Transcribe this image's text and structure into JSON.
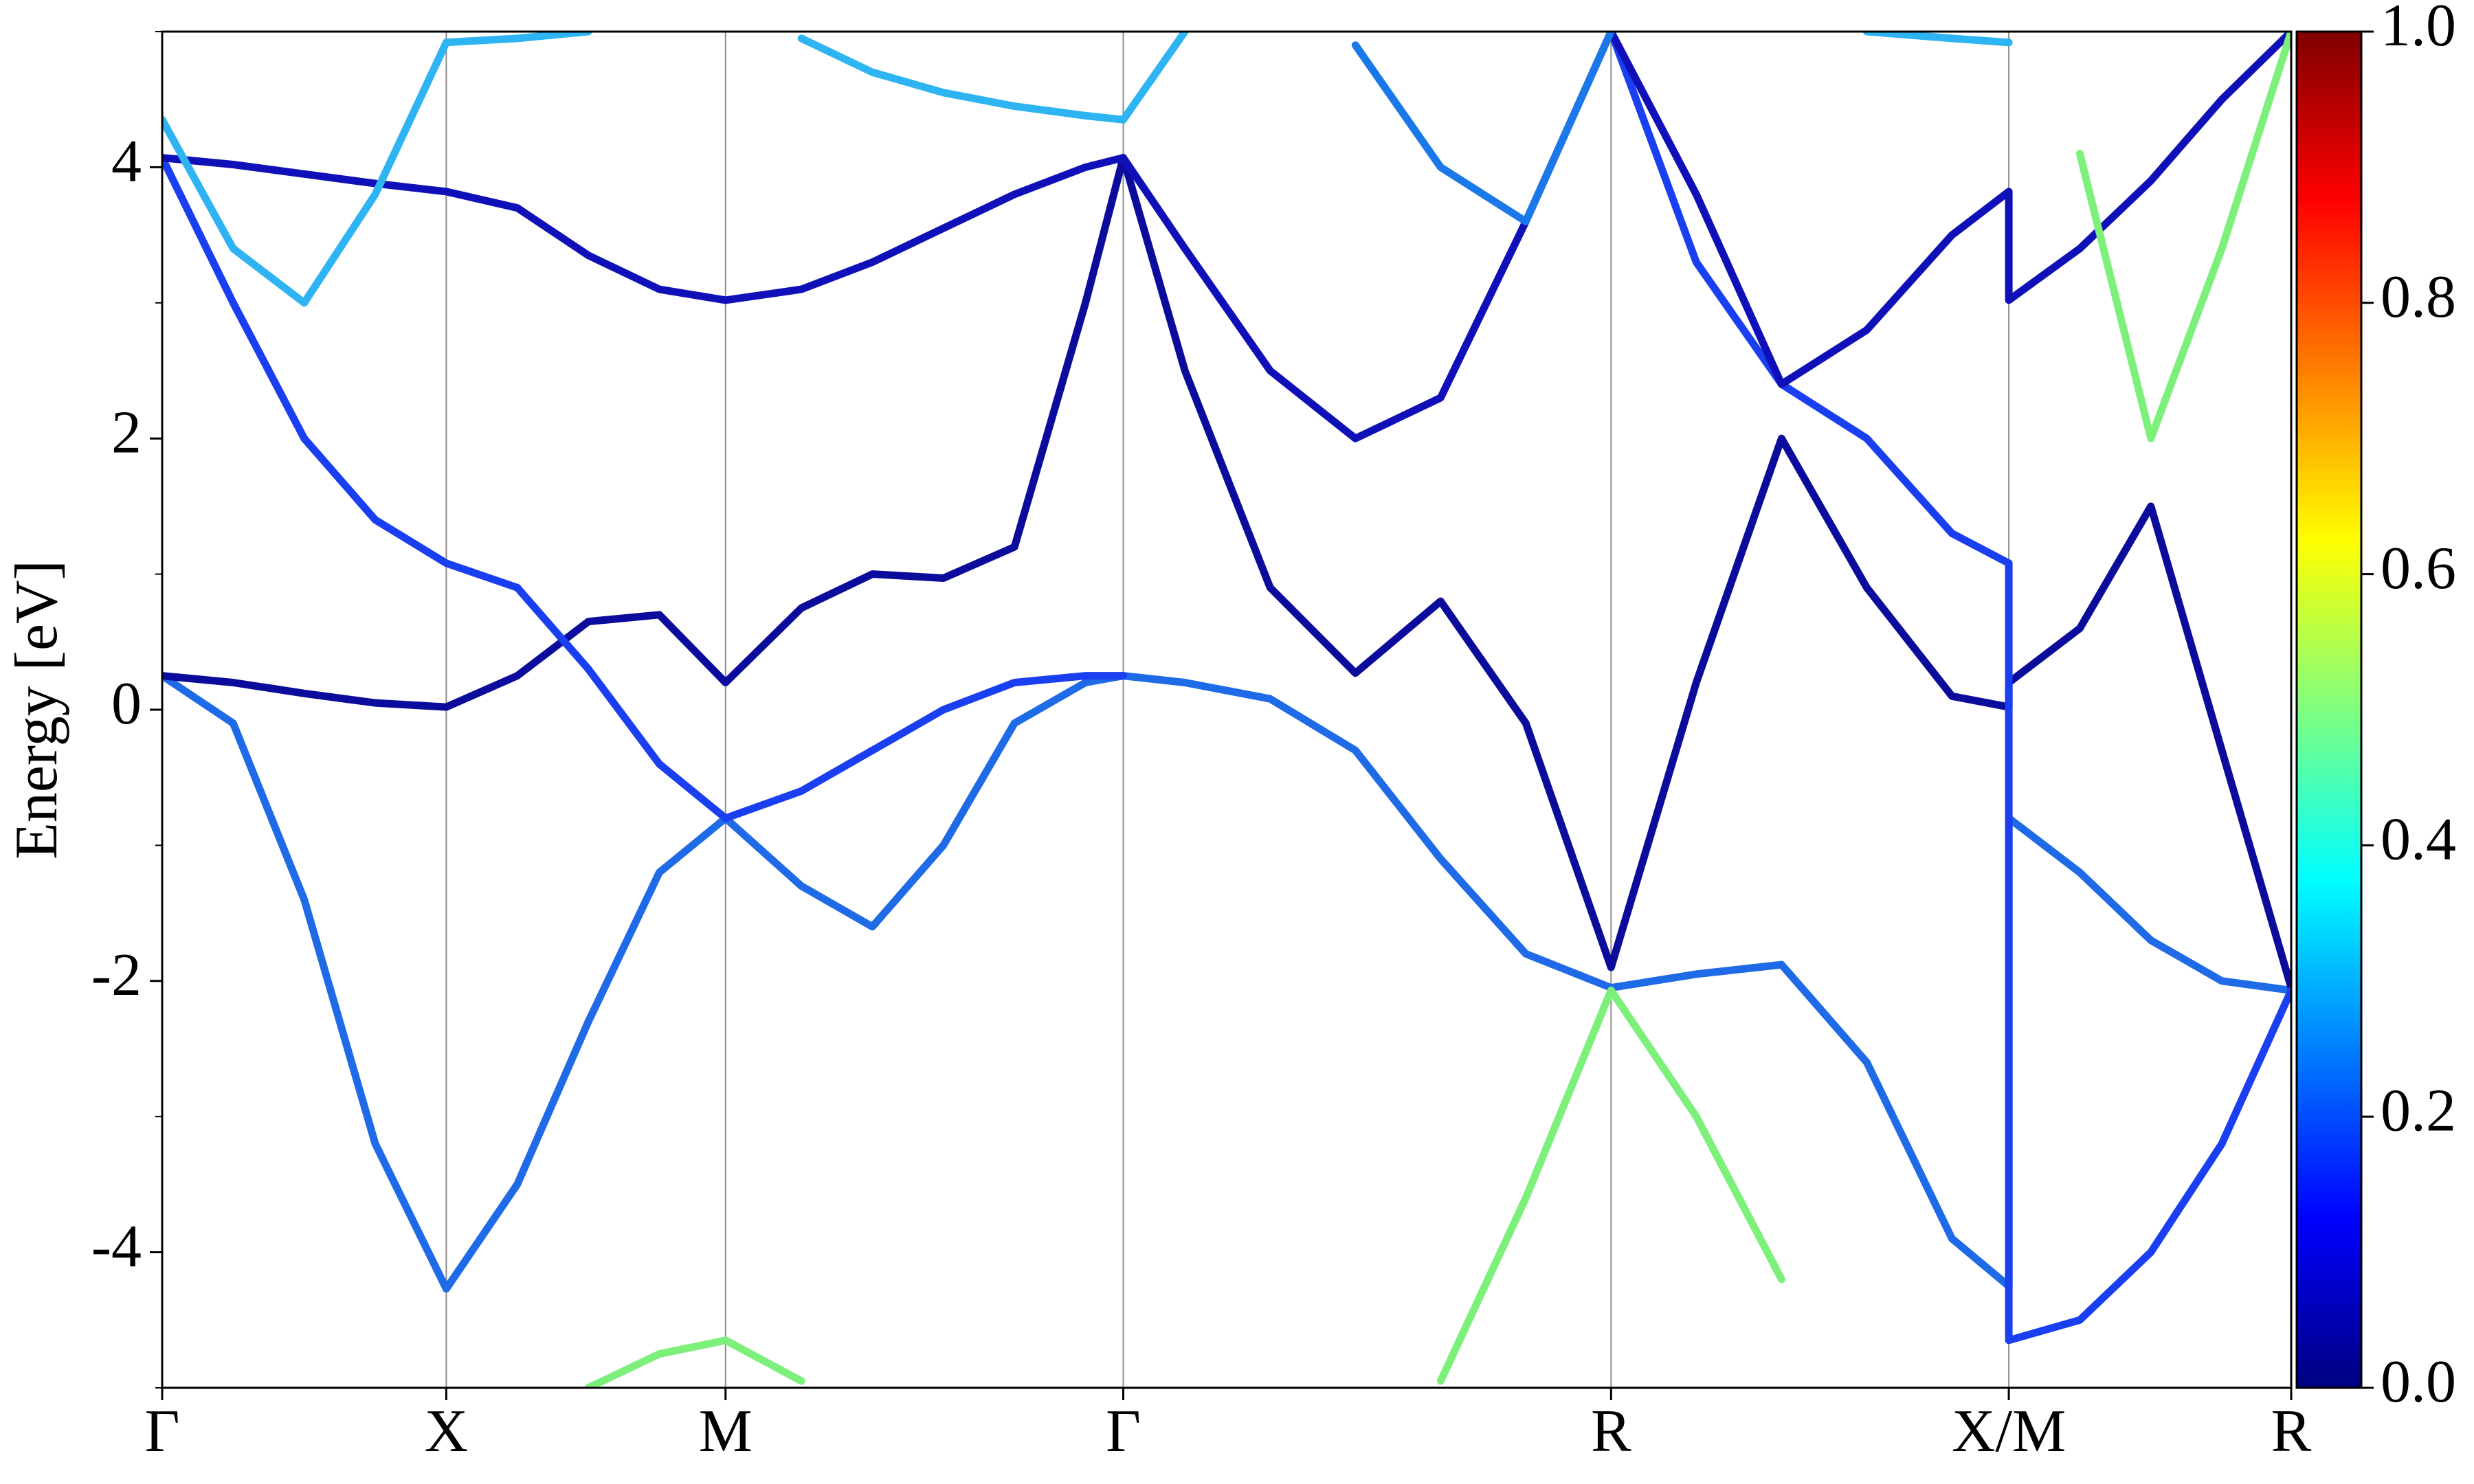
{
  "chart_data": {
    "type": "line",
    "ylabel": "Energy [eV]",
    "x": [
      0,
      0.25,
      0.5,
      0.75,
      1.0,
      1.25,
      1.5,
      1.75,
      1.983,
      2.25,
      2.5,
      2.75,
      3.0,
      3.25,
      3.383,
      3.6,
      3.9,
      4.2,
      4.5,
      4.8,
      5.1,
      5.4,
      5.7,
      6.0,
      6.3,
      6.5,
      6.5,
      6.75,
      7.0,
      7.25,
      7.494
    ],
    "series": [
      {
        "color": "#1f6ae6",
        "values": [
          0.25,
          -0.1,
          -1.4,
          -3.2,
          -4.27,
          -3.5,
          -2.3,
          -1.2,
          -0.8,
          -1.3,
          -1.6,
          -1.0,
          -0.1,
          0.2,
          0.25,
          0.2,
          0.08,
          -0.3,
          -1.1,
          -1.8,
          -2.05,
          -1.95,
          -1.88,
          -2.6,
          -3.9,
          -4.25,
          -0.8,
          -1.2,
          -1.7,
          -2.0,
          -2.07
        ]
      },
      {
        "color": "#0c0c9c",
        "values": [
          0.25,
          0.2,
          0.12,
          0.05,
          0.02,
          0.25,
          0.65,
          0.7,
          0.2,
          0.75,
          1.0,
          0.97,
          1.2,
          3.0,
          4.07,
          2.5,
          0.9,
          0.27,
          0.8,
          -0.1,
          -1.9,
          0.2,
          2.0,
          0.9,
          0.1,
          0.02,
          0.2,
          0.6,
          1.5,
          -0.3,
          -2.05
        ]
      },
      {
        "color": "#1a3ff0",
        "values": [
          4.07,
          3.0,
          2.0,
          1.4,
          1.08,
          0.9,
          0.3,
          -0.4,
          -0.8,
          -0.6,
          -0.3,
          0.0,
          0.2,
          0.25,
          0.25,
          null,
          null,
          null,
          null,
          null,
          5.0,
          3.3,
          2.4,
          2.0,
          1.3,
          1.08,
          -4.65,
          -4.5,
          -4.0,
          -3.2,
          -2.07
        ]
      },
      {
        "color": "#1010b8",
        "values": [
          4.07,
          4.02,
          3.95,
          3.88,
          3.82,
          3.7,
          3.35,
          3.1,
          3.02,
          3.1,
          3.3,
          3.55,
          3.8,
          4.0,
          4.07,
          3.4,
          2.5,
          2.0,
          2.3,
          3.6,
          5.0,
          3.8,
          2.4,
          2.8,
          3.5,
          3.82,
          3.02,
          3.4,
          3.9,
          4.5,
          5.0
        ]
      },
      {
        "color": "#7cf07a",
        "values": [
          null,
          null,
          null,
          null,
          null,
          null,
          -5.0,
          -4.75,
          -4.65,
          -4.95,
          null,
          null,
          null,
          null,
          null,
          null,
          null,
          null,
          -4.95,
          -3.6,
          -2.07,
          -3.0,
          -4.2,
          null,
          null,
          null,
          null,
          4.1,
          2.0,
          3.4,
          5.0
        ]
      },
      {
        "color": "#2eb4f2",
        "values": [
          4.35,
          3.4,
          3.0,
          3.8,
          4.92,
          4.95,
          5.0,
          null,
          null,
          4.95,
          4.7,
          4.55,
          4.45,
          4.38,
          4.35,
          5.0,
          null,
          null,
          null,
          null,
          null,
          null,
          null,
          5.0,
          4.95,
          4.92,
          null,
          null,
          null,
          null,
          null
        ]
      },
      {
        "color": "#1a78e8",
        "values": [
          null,
          null,
          null,
          null,
          null,
          null,
          null,
          null,
          null,
          null,
          null,
          null,
          null,
          null,
          null,
          null,
          null,
          4.9,
          4.0,
          3.6,
          5.0,
          null,
          null,
          null,
          null,
          null,
          null,
          null,
          null,
          null,
          null
        ]
      }
    ],
    "xlim": [
      0,
      7.494
    ],
    "xticks": [
      {
        "value": 0,
        "label": "Γ"
      },
      {
        "value": 1.0,
        "label": "X"
      },
      {
        "value": 1.983,
        "label": "M"
      },
      {
        "value": 3.383,
        "label": "Γ"
      },
      {
        "value": 5.1,
        "label": "R"
      },
      {
        "value": 6.5,
        "label": "X/M"
      },
      {
        "value": 7.494,
        "label": "R"
      }
    ],
    "ylim": [
      -5,
      5
    ],
    "yticks": [
      -4,
      -2,
      0,
      2,
      4
    ],
    "yminorticks": [
      -5,
      -3,
      -1,
      1,
      3,
      5
    ],
    "grid": true,
    "colorbar": {
      "clim": [
        0,
        1
      ],
      "colors": [
        "#00007f",
        "#0000ff",
        "#007fff",
        "#00ffff",
        "#7fff7f",
        "#ffff00",
        "#ff7f00",
        "#ff0000",
        "#7f0000"
      ],
      "ticks": [
        {
          "value": 0,
          "label": "0.0"
        },
        0.2,
        0.4,
        0.6,
        0.8,
        {
          "value": 1,
          "label": "1.0"
        }
      ]
    }
  }
}
